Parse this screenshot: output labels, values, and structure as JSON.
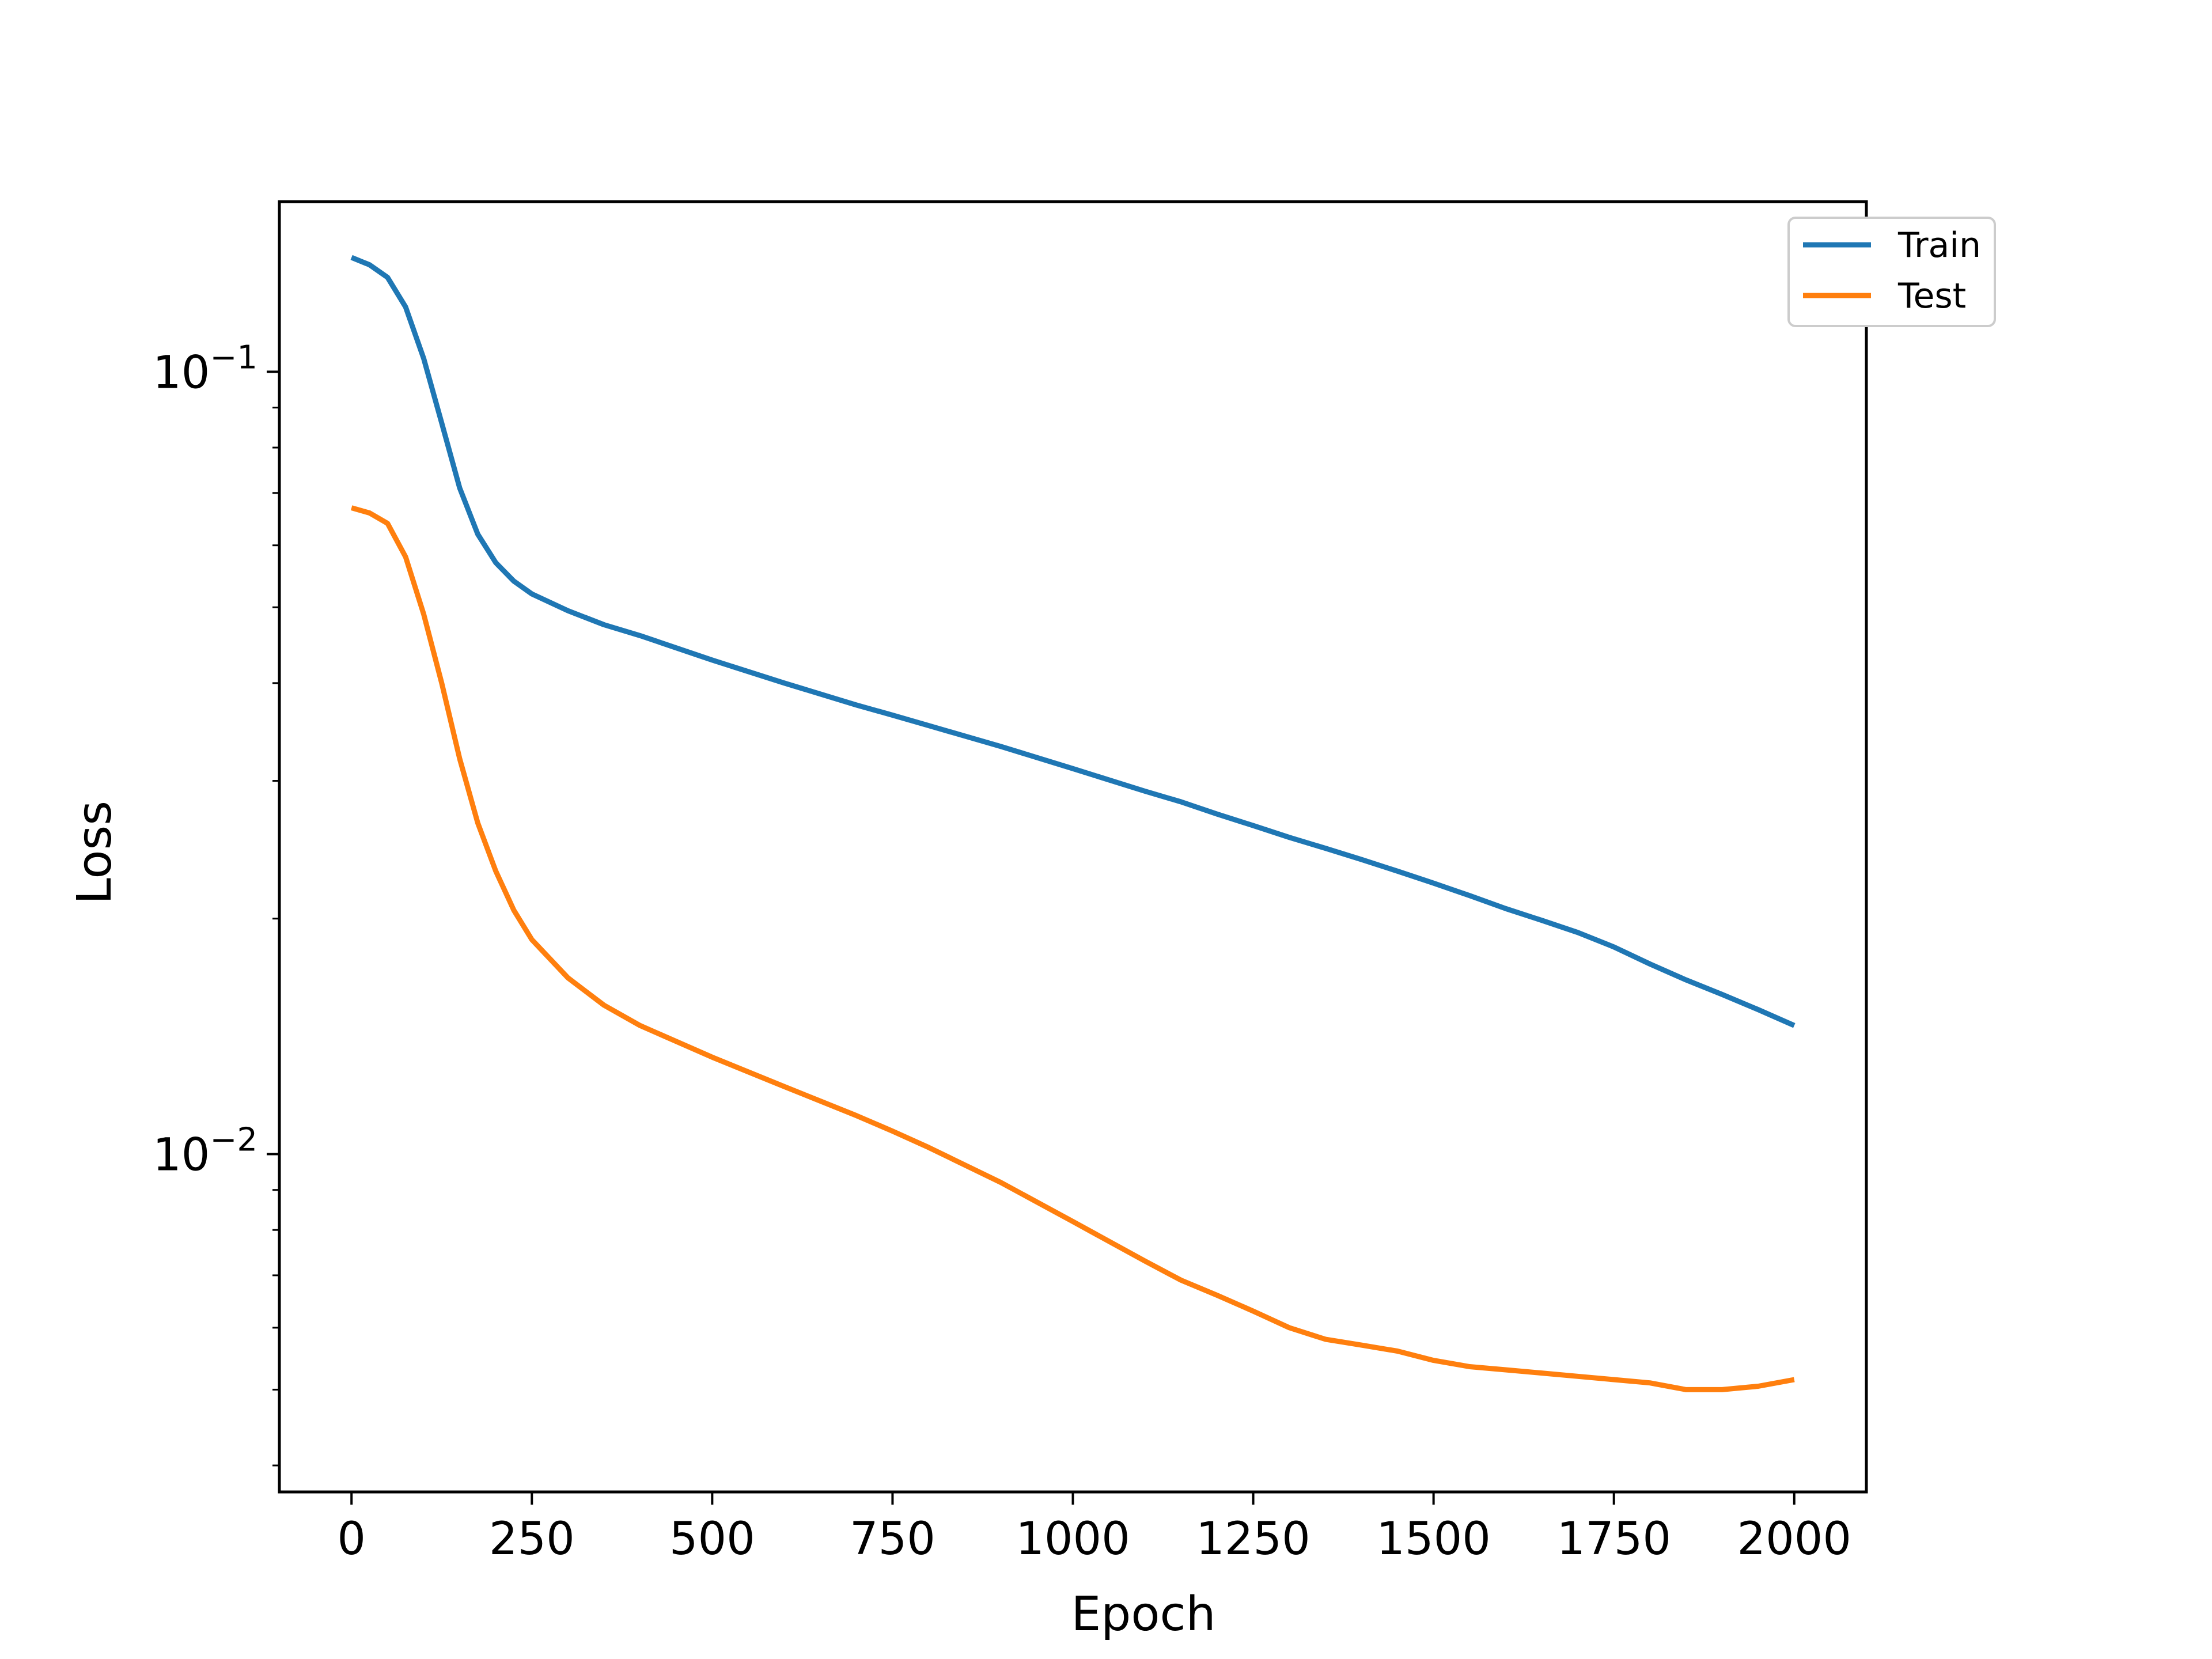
{
  "chart_data": {
    "type": "line",
    "title": "",
    "xlabel": "Epoch",
    "ylabel": "Loss",
    "yscale": "log",
    "xlim": [
      -100,
      2100
    ],
    "ylim": [
      0.0037,
      0.165
    ],
    "grid": false,
    "legend_position": "top-right",
    "x_ticks": [
      0,
      250,
      500,
      750,
      1000,
      1250,
      1500,
      1750,
      2000
    ],
    "x_tick_labels": [
      "0",
      "250",
      "500",
      "750",
      "1000",
      "1250",
      "1500",
      "1750",
      "2000"
    ],
    "y_major_ticks": [
      {
        "value": 0.1,
        "base": "10",
        "exp": "−1"
      },
      {
        "value": 0.01,
        "base": "10",
        "exp": "−2"
      }
    ],
    "y_minor_ticks": [
      0.004,
      0.005,
      0.006,
      0.007,
      0.008,
      0.009,
      0.02,
      0.03,
      0.04,
      0.05,
      0.06,
      0.07,
      0.08,
      0.09
    ],
    "x": [
      0,
      25,
      50,
      75,
      100,
      125,
      150,
      175,
      200,
      225,
      250,
      300,
      350,
      400,
      500,
      600,
      700,
      750,
      800,
      900,
      1000,
      1100,
      1150,
      1200,
      1250,
      1300,
      1350,
      1400,
      1450,
      1500,
      1550,
      1600,
      1650,
      1700,
      1750,
      1800,
      1850,
      1900,
      1950,
      2000
    ],
    "series": [
      {
        "name": "Train",
        "color": "#1f77b4",
        "values": [
          0.14,
          0.137,
          0.132,
          0.121,
          0.104,
          0.086,
          0.071,
          0.062,
          0.057,
          0.054,
          0.052,
          0.0495,
          0.0475,
          0.046,
          0.0428,
          0.04,
          0.0375,
          0.0364,
          0.0353,
          0.0332,
          0.0311,
          0.0291,
          0.0282,
          0.0272,
          0.0263,
          0.0254,
          0.0246,
          0.0238,
          0.023,
          0.0222,
          0.0214,
          0.0206,
          0.0199,
          0.0192,
          0.0184,
          0.0175,
          0.0167,
          0.016,
          0.0153,
          0.0146
        ]
      },
      {
        "name": "Test",
        "color": "#ff7f0e",
        "values": [
          0.067,
          0.066,
          0.064,
          0.058,
          0.049,
          0.04,
          0.032,
          0.0265,
          0.023,
          0.0205,
          0.0188,
          0.0168,
          0.0155,
          0.0146,
          0.0133,
          0.0122,
          0.0112,
          0.0107,
          0.0102,
          0.0092,
          0.0082,
          0.0073,
          0.0069,
          0.0066,
          0.0063,
          0.006,
          0.0058,
          0.0057,
          0.0056,
          0.00545,
          0.00535,
          0.0053,
          0.00525,
          0.0052,
          0.00515,
          0.0051,
          0.005,
          0.005,
          0.00505,
          0.00515
        ]
      }
    ]
  }
}
